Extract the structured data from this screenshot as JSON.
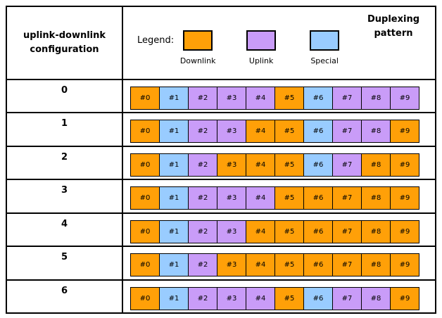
{
  "header": {
    "left_title": "uplink-downlink configuration",
    "right_title": "Duplexing pattern",
    "legend_caption": "Legend:",
    "legend": [
      {
        "label": "Downlink",
        "type": "downlink"
      },
      {
        "label": "Uplink",
        "type": "uplink"
      },
      {
        "label": "Special",
        "type": "special"
      }
    ]
  },
  "colors": {
    "downlink": "#FFA008",
    "uplink": "#C99CF8",
    "special": "#99CCFF",
    "border": "#000000"
  },
  "subframe_labels": [
    "#0",
    "#1",
    "#2",
    "#3",
    "#4",
    "#5",
    "#6",
    "#7",
    "#8",
    "#9"
  ],
  "pattern_key": {
    "D": "downlink",
    "S": "special",
    "U": "uplink"
  },
  "rows": [
    {
      "config": "0",
      "pattern": [
        "D",
        "S",
        "U",
        "U",
        "U",
        "D",
        "S",
        "U",
        "U",
        "U"
      ]
    },
    {
      "config": "1",
      "pattern": [
        "D",
        "S",
        "U",
        "U",
        "D",
        "D",
        "S",
        "U",
        "U",
        "D"
      ]
    },
    {
      "config": "2",
      "pattern": [
        "D",
        "S",
        "U",
        "D",
        "D",
        "D",
        "S",
        "U",
        "D",
        "D"
      ]
    },
    {
      "config": "3",
      "pattern": [
        "D",
        "S",
        "U",
        "U",
        "U",
        "D",
        "D",
        "D",
        "D",
        "D"
      ]
    },
    {
      "config": "4",
      "pattern": [
        "D",
        "S",
        "U",
        "U",
        "D",
        "D",
        "D",
        "D",
        "D",
        "D"
      ]
    },
    {
      "config": "5",
      "pattern": [
        "D",
        "S",
        "U",
        "D",
        "D",
        "D",
        "D",
        "D",
        "D",
        "D"
      ]
    },
    {
      "config": "6",
      "pattern": [
        "D",
        "S",
        "U",
        "U",
        "U",
        "D",
        "S",
        "U",
        "U",
        "D"
      ]
    }
  ]
}
